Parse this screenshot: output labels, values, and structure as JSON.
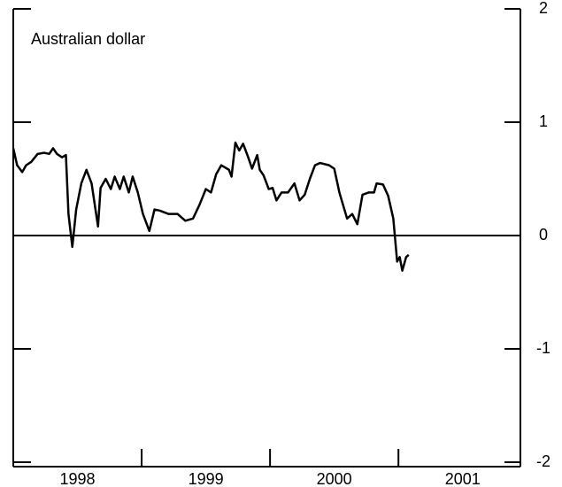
{
  "chart_data": {
    "type": "line",
    "title": "Australian dollar",
    "x": [
      1998.0,
      1998.03,
      1998.07,
      1998.1,
      1998.14,
      1998.19,
      1998.24,
      1998.28,
      1998.31,
      1998.34,
      1998.38,
      1998.41,
      1998.43,
      1998.46,
      1998.49,
      1998.53,
      1998.57,
      1998.61,
      1998.66,
      1998.68,
      1998.72,
      1998.76,
      1998.79,
      1998.83,
      1998.86,
      1998.9,
      1998.93,
      1998.97,
      1999.01,
      1999.06,
      1999.1,
      1999.14,
      1999.21,
      1999.28,
      1999.34,
      1999.4,
      1999.45,
      1999.5,
      1999.54,
      1999.58,
      1999.62,
      1999.68,
      1999.7,
      1999.73,
      1999.76,
      1999.79,
      1999.83,
      1999.86,
      1999.9,
      1999.92,
      1999.95,
      1999.99,
      2000.02,
      2000.05,
      2000.09,
      2000.14,
      2000.19,
      2000.23,
      2000.27,
      2000.31,
      2000.35,
      2000.39,
      2000.46,
      2000.5,
      2000.54,
      2000.6,
      2000.64,
      2000.68,
      2000.72,
      2000.77,
      2000.81,
      2000.83,
      2000.88,
      2000.92,
      2000.96,
      2000.99,
      2001.01,
      2001.03,
      2001.06,
      2001.08
    ],
    "series": [
      {
        "name": "Australian dollar",
        "color": "#000000",
        "values": [
          0.77,
          0.62,
          0.56,
          0.62,
          0.65,
          0.72,
          0.73,
          0.72,
          0.77,
          0.72,
          0.69,
          0.71,
          0.19,
          -0.1,
          0.23,
          0.46,
          0.58,
          0.46,
          0.08,
          0.42,
          0.5,
          0.41,
          0.52,
          0.41,
          0.52,
          0.38,
          0.52,
          0.38,
          0.19,
          0.04,
          0.23,
          0.22,
          0.19,
          0.19,
          0.13,
          0.15,
          0.27,
          0.41,
          0.38,
          0.54,
          0.62,
          0.58,
          0.52,
          0.82,
          0.75,
          0.81,
          0.69,
          0.59,
          0.71,
          0.58,
          0.53,
          0.41,
          0.42,
          0.31,
          0.38,
          0.38,
          0.46,
          0.31,
          0.36,
          0.5,
          0.62,
          0.64,
          0.62,
          0.59,
          0.38,
          0.15,
          0.19,
          0.1,
          0.36,
          0.38,
          0.38,
          0.46,
          0.45,
          0.35,
          0.15,
          -0.23,
          -0.19,
          -0.31,
          -0.19,
          -0.17
        ]
      }
    ],
    "xlim": [
      1998,
      2001.95
    ],
    "xticks": [
      {
        "value": 1998.5,
        "label": "1998"
      },
      {
        "value": 1999.5,
        "label": "1999"
      },
      {
        "value": 2000.5,
        "label": "2000"
      },
      {
        "value": 2001.5,
        "label": "2001"
      }
    ],
    "minor_xticks": [
      1999,
      2000,
      2001
    ],
    "ylim": [
      -2,
      2
    ],
    "yticks": [
      2,
      1,
      0,
      -1,
      -2
    ]
  }
}
